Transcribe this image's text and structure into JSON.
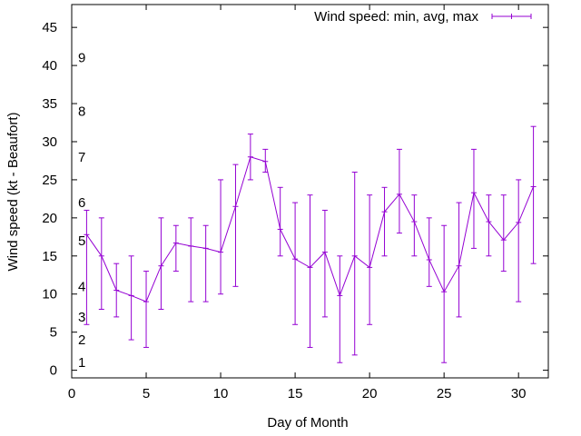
{
  "chart_data": {
    "type": "line",
    "xlabel": "Day of Month",
    "ylabel": "Wind speed (kt - Beaufort)",
    "xlim": [
      0,
      32
    ],
    "ylim": [
      -1,
      48
    ],
    "xticks": [
      0,
      5,
      10,
      15,
      20,
      25,
      30
    ],
    "yticks": [
      0,
      5,
      10,
      15,
      20,
      25,
      30,
      35,
      40,
      45
    ],
    "grid": false,
    "legend_position": "top-right",
    "beaufort_labels": [
      {
        "label": "1",
        "value": 1
      },
      {
        "label": "2",
        "value": 4
      },
      {
        "label": "3",
        "value": 7
      },
      {
        "label": "4",
        "value": 11
      },
      {
        "label": "5",
        "value": 17
      },
      {
        "label": "6",
        "value": 22
      },
      {
        "label": "7",
        "value": 28
      },
      {
        "label": "8",
        "value": 34
      },
      {
        "label": "9",
        "value": 41
      }
    ],
    "series": [
      {
        "name": "Wind speed: min, avg, max",
        "color": "#9400d3",
        "x": [
          1,
          2,
          3,
          4,
          5,
          6,
          7,
          8,
          9,
          10,
          11,
          12,
          13,
          14,
          15,
          16,
          17,
          18,
          19,
          20,
          21,
          22,
          23,
          24,
          25,
          26,
          27,
          28,
          29,
          30,
          31
        ],
        "avg": [
          17.8,
          15,
          10.5,
          9.8,
          9,
          13.7,
          16.7,
          16.3,
          16,
          15.5,
          21.5,
          28,
          27.4,
          18.5,
          14.6,
          13.5,
          15.5,
          9.8,
          15,
          13.5,
          20.8,
          23.1,
          19.5,
          14.5,
          10.3,
          13.7,
          23.3,
          19.5,
          17.1,
          19.4,
          24.1
        ],
        "min": [
          6,
          8,
          7,
          4,
          3,
          8,
          13,
          9,
          9,
          10,
          11,
          25,
          26,
          15,
          6,
          3,
          7,
          1,
          2,
          6,
          15,
          18,
          15,
          11,
          1,
          7,
          16,
          15,
          13,
          9,
          14
        ],
        "max": [
          21,
          20,
          14,
          15,
          13,
          20,
          19,
          20,
          19,
          25,
          27,
          31,
          29,
          24,
          22,
          23,
          21,
          15,
          26,
          23,
          24,
          29,
          23,
          20,
          19,
          22,
          29,
          23,
          23,
          25,
          32
        ]
      }
    ]
  }
}
